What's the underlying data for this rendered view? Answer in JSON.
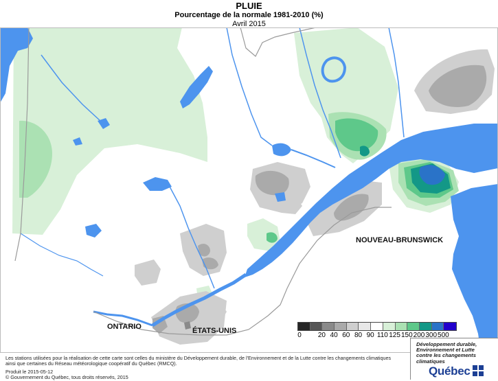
{
  "header": {
    "title": "PLUIE",
    "subtitle": "Pourcentage de la normale 1981-2010 (%)",
    "period": "Avril 2015"
  },
  "regions": {
    "ontario": "ONTARIO",
    "etats_unis": "ÉTATS-UNIS",
    "nouveau_brunswick": "NOUVEAU-BRUNSWICK"
  },
  "legend": {
    "ticks": [
      "0",
      "20",
      "40",
      "60",
      "80",
      "90",
      "110",
      "125",
      "150",
      "200",
      "300",
      "500"
    ],
    "colors": [
      "#262626",
      "#565656",
      "#8a8a8a",
      "#aaaaaa",
      "#cfcfcf",
      "#e8e8e8",
      "#ffffff",
      "#d8f0d8",
      "#abe1b3",
      "#5ec88a",
      "#139887",
      "#2a73c8",
      "#2200cc"
    ]
  },
  "colors": {
    "water": "#4d94ee",
    "border": "#9a9a9a"
  },
  "footer": {
    "line1": "Les stations utilisées pour la réalisation de cette carte sont celles du ministère du Développement durable, de l'Environnement et de la Lutte contre les changements climatiques",
    "line2": "ainsi que certaines du Réseau météorologique coopératif du Québec (RMCQ).",
    "produced": "Produit le 2015-05-12",
    "copyright": "© Gouvernement du Québec, tous droits réservés, 2015"
  },
  "logo": {
    "line1": "Développement durable,",
    "line2": "Environnement et Lutte",
    "line3": "contre les changements",
    "line4": "climatiques",
    "name": "Québec"
  }
}
